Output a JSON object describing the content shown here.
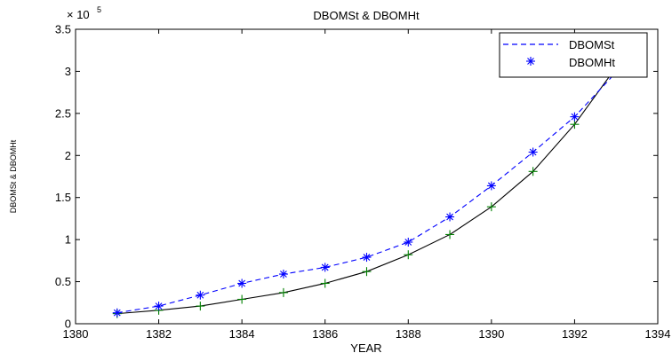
{
  "chart_data": {
    "type": "line",
    "title": "DBOMSt & DBOMHt",
    "xlabel": "YEAR",
    "ylabel": "DBOMSt & DBOMHt",
    "y_multiplier_label": "× 10",
    "y_multiplier_exponent": "5",
    "xlim": [
      1380,
      1394
    ],
    "ylim": [
      0,
      3.5
    ],
    "x_ticks": [
      1380,
      1382,
      1384,
      1386,
      1388,
      1390,
      1392,
      1394
    ],
    "y_ticks": [
      0,
      0.5,
      1,
      1.5,
      2,
      2.5,
      3,
      3.5
    ],
    "y_tick_labels": [
      "0",
      "0.5",
      "1",
      "1.5",
      "2",
      "2.5",
      "3",
      "3.5"
    ],
    "x": [
      1381,
      1382,
      1383,
      1384,
      1385,
      1386,
      1387,
      1388,
      1389,
      1390,
      1391,
      1392,
      1393
    ],
    "series": [
      {
        "name": "DBOMSt",
        "style": "dashed",
        "marker": "star",
        "color": "#0000ff",
        "values": [
          0.13,
          0.21,
          0.34,
          0.48,
          0.59,
          0.67,
          0.79,
          0.97,
          1.27,
          1.64,
          2.04,
          2.46,
          2.99
        ]
      },
      {
        "name": "DBOMHt",
        "style": "solid",
        "marker": "plus",
        "color": "#000000",
        "marker_color": "#008000",
        "values": [
          0.12,
          0.16,
          0.21,
          0.29,
          0.37,
          0.48,
          0.62,
          0.82,
          1.06,
          1.39,
          1.81,
          2.37,
          3.05
        ]
      }
    ],
    "legend": {
      "placement": "top-right",
      "entries": [
        "DBOMSt",
        "DBOMHt"
      ]
    },
    "grid": false
  }
}
